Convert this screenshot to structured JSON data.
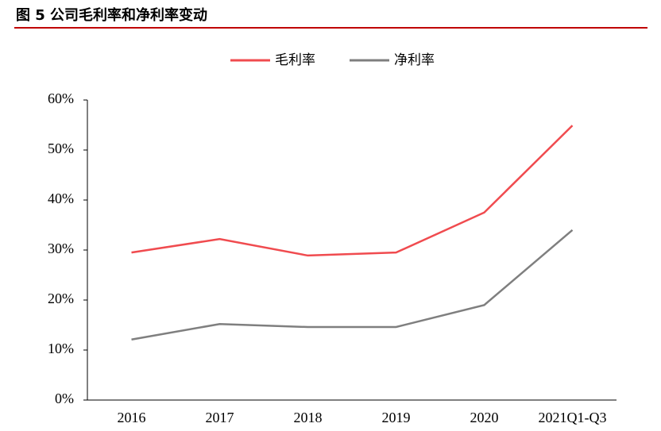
{
  "chart_data": {
    "type": "line",
    "title": "图 5 公司毛利率和净利率变动",
    "categories": [
      "2016",
      "2017",
      "2018",
      "2019",
      "2020",
      "2021Q1-Q3"
    ],
    "series": [
      {
        "name": "毛利率",
        "color": "#f04b4f",
        "values": [
          29.5,
          32.2,
          28.9,
          29.5,
          37.5,
          54.9
        ]
      },
      {
        "name": "净利率",
        "color": "#7f7f7f",
        "values": [
          12.1,
          15.2,
          14.6,
          14.6,
          19.0,
          34.0
        ]
      }
    ],
    "ylim": [
      0,
      60
    ],
    "yticks": [
      {
        "value": 0,
        "label": "0%"
      },
      {
        "value": 10,
        "label": "10%"
      },
      {
        "value": 20,
        "label": "20%"
      },
      {
        "value": 30,
        "label": "30%"
      },
      {
        "value": 40,
        "label": "40%"
      },
      {
        "value": 50,
        "label": "50%"
      },
      {
        "value": 60,
        "label": "60%"
      }
    ],
    "legend": "top"
  }
}
